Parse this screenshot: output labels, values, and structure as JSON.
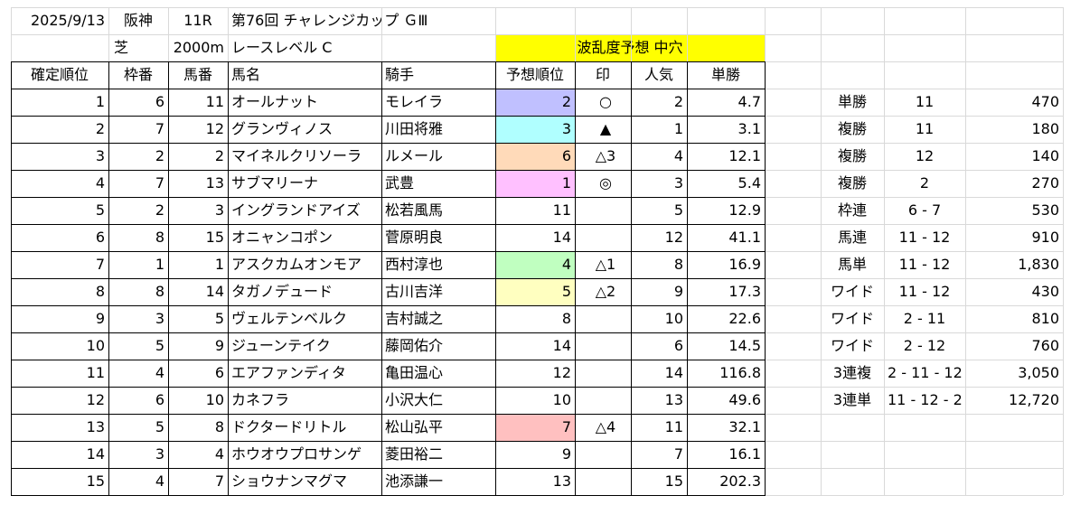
{
  "header": {
    "date": "2025/9/13",
    "venue": "阪神",
    "race_no": "11R",
    "race_name": "第76回 チャレンジカップ ＧⅢ",
    "surface": "芝",
    "distance": "2000m",
    "level": "レースレベル C",
    "prediction_title": "波乱度予想 中穴"
  },
  "colors": {
    "highlight_yellow": "#ffff00",
    "lavender": "#c0c0ff",
    "cyan": "#b0ffff",
    "peach": "#ffdab9",
    "pink": "#ffc0ff",
    "green": "#c0ffc0",
    "lightyellow": "#ffffc0",
    "salmon": "#ffc0c0"
  },
  "table": {
    "headers": [
      "確定順位",
      "枠番",
      "馬番",
      "馬名",
      "騎手",
      "予想順位",
      "印",
      "人気",
      "単勝"
    ],
    "rows": [
      {
        "pos": "1",
        "waku": "6",
        "umaban": "11",
        "name": "オールナット",
        "jockey": "モレイラ",
        "pred": "2",
        "mark": "○",
        "pop": "2",
        "odds": "4.7",
        "color": "#c0c0ff"
      },
      {
        "pos": "2",
        "waku": "7",
        "umaban": "12",
        "name": "グランヴィノス",
        "jockey": "川田将雅",
        "pred": "3",
        "mark": "▲",
        "pop": "1",
        "odds": "3.1",
        "color": "#b0ffff"
      },
      {
        "pos": "3",
        "waku": "2",
        "umaban": "2",
        "name": "マイネルクリソーラ",
        "jockey": "ルメール",
        "pred": "6",
        "mark": "△3",
        "pop": "4",
        "odds": "12.1",
        "color": "#ffdab9"
      },
      {
        "pos": "4",
        "waku": "7",
        "umaban": "13",
        "name": "サブマリーナ",
        "jockey": "武豊",
        "pred": "1",
        "mark": "◎",
        "pop": "3",
        "odds": "5.4",
        "color": "#ffc0ff"
      },
      {
        "pos": "5",
        "waku": "2",
        "umaban": "3",
        "name": "イングランドアイズ",
        "jockey": "松若風馬",
        "pred": "11",
        "mark": "",
        "pop": "5",
        "odds": "12.9",
        "color": ""
      },
      {
        "pos": "6",
        "waku": "8",
        "umaban": "15",
        "name": "オニャンコポン",
        "jockey": "菅原明良",
        "pred": "14",
        "mark": "",
        "pop": "12",
        "odds": "41.1",
        "color": ""
      },
      {
        "pos": "7",
        "waku": "1",
        "umaban": "1",
        "name": "アスクカムオンモア",
        "jockey": "西村淳也",
        "pred": "4",
        "mark": "△1",
        "pop": "8",
        "odds": "16.9",
        "color": "#c0ffc0"
      },
      {
        "pos": "8",
        "waku": "8",
        "umaban": "14",
        "name": "タガノデュード",
        "jockey": "古川吉洋",
        "pred": "5",
        "mark": "△2",
        "pop": "9",
        "odds": "17.3",
        "color": "#ffffc0"
      },
      {
        "pos": "9",
        "waku": "3",
        "umaban": "5",
        "name": "ヴェルテンベルク",
        "jockey": "吉村誠之",
        "pred": "8",
        "mark": "",
        "pop": "10",
        "odds": "22.6",
        "color": ""
      },
      {
        "pos": "10",
        "waku": "5",
        "umaban": "9",
        "name": "ジューンテイク",
        "jockey": "藤岡佑介",
        "pred": "14",
        "mark": "",
        "pop": "6",
        "odds": "14.5",
        "color": ""
      },
      {
        "pos": "11",
        "waku": "4",
        "umaban": "6",
        "name": "エアファンディタ",
        "jockey": "亀田温心",
        "pred": "12",
        "mark": "",
        "pop": "14",
        "odds": "116.8",
        "color": ""
      },
      {
        "pos": "12",
        "waku": "6",
        "umaban": "10",
        "name": "カネフラ",
        "jockey": "小沢大仁",
        "pred": "10",
        "mark": "",
        "pop": "13",
        "odds": "49.6",
        "color": ""
      },
      {
        "pos": "13",
        "waku": "5",
        "umaban": "8",
        "name": "ドクタードリトル",
        "jockey": "松山弘平",
        "pred": "7",
        "mark": "△4",
        "pop": "11",
        "odds": "32.1",
        "color": "#ffc0c0"
      },
      {
        "pos": "14",
        "waku": "3",
        "umaban": "4",
        "name": "ホウオウプロサンゲ",
        "jockey": "菱田裕二",
        "pred": "9",
        "mark": "",
        "pop": "7",
        "odds": "16.1",
        "color": ""
      },
      {
        "pos": "15",
        "waku": "4",
        "umaban": "7",
        "name": "ショウナンマグマ",
        "jockey": "池添謙一",
        "pred": "13",
        "mark": "",
        "pop": "15",
        "odds": "202.3",
        "color": ""
      }
    ]
  },
  "payouts": [
    {
      "type": "単勝",
      "combo": "11",
      "amount": "470"
    },
    {
      "type": "複勝",
      "combo": "11",
      "amount": "180"
    },
    {
      "type": "複勝",
      "combo": "12",
      "amount": "140"
    },
    {
      "type": "複勝",
      "combo": "2",
      "amount": "270"
    },
    {
      "type": "枠連",
      "combo": "6 - 7",
      "amount": "530"
    },
    {
      "type": "馬連",
      "combo": "11 - 12",
      "amount": "910"
    },
    {
      "type": "馬単",
      "combo": "11 - 12",
      "amount": "1,830"
    },
    {
      "type": "ワイド",
      "combo": "11 - 12",
      "amount": "430"
    },
    {
      "type": "ワイド",
      "combo": "2 - 11",
      "amount": "810"
    },
    {
      "type": "ワイド",
      "combo": "2 - 12",
      "amount": "760"
    },
    {
      "type": "3連複",
      "combo": "2 - 11 - 12",
      "amount": "3,050"
    },
    {
      "type": "3連単",
      "combo": "11 - 12 - 2",
      "amount": "12,720"
    }
  ]
}
